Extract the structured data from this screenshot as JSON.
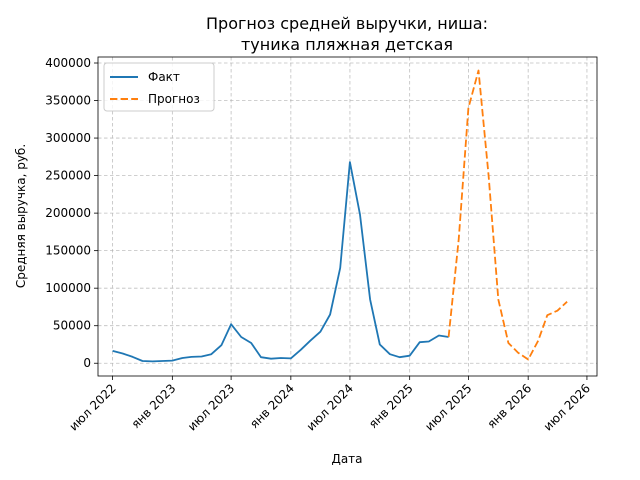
{
  "chart_data": {
    "type": "line",
    "title_line1": "Прогноз средней выручки, ниша:",
    "title_line2": "туника пляжная детская",
    "xlabel": "Дата",
    "ylabel": "Средняя выручка, руб.",
    "xlim": [
      "2022-05-17",
      "2026-08-01"
    ],
    "ylim": [
      -17000,
      408000
    ],
    "x_ticks": [
      {
        "date": "2022-07-01",
        "label": "июл 2022"
      },
      {
        "date": "2023-01-01",
        "label": "янв 2023"
      },
      {
        "date": "2023-07-01",
        "label": "июл 2023"
      },
      {
        "date": "2024-01-01",
        "label": "янв 2024"
      },
      {
        "date": "2024-07-01",
        "label": "июл 2024"
      },
      {
        "date": "2025-01-01",
        "label": "янв 2025"
      },
      {
        "date": "2025-07-01",
        "label": "июл 2025"
      },
      {
        "date": "2026-01-01",
        "label": "янв 2026"
      },
      {
        "date": "2026-07-01",
        "label": "июл 2026"
      }
    ],
    "y_ticks": [
      {
        "value": 0,
        "label": "0"
      },
      {
        "value": 50000,
        "label": "50000"
      },
      {
        "value": 100000,
        "label": "100000"
      },
      {
        "value": 150000,
        "label": "150000"
      },
      {
        "value": 200000,
        "label": "200000"
      },
      {
        "value": 250000,
        "label": "250000"
      },
      {
        "value": 300000,
        "label": "300000"
      },
      {
        "value": 350000,
        "label": "350000"
      },
      {
        "value": 400000,
        "label": "400000"
      }
    ],
    "grid": true,
    "legend_position": "top-left",
    "series": [
      {
        "name": "Факт",
        "color": "#1f77b4",
        "style": "solid",
        "points": [
          {
            "x": "2022-07-01",
            "y": 16500
          },
          {
            "x": "2022-08-01",
            "y": 13000
          },
          {
            "x": "2022-09-01",
            "y": 8500
          },
          {
            "x": "2022-10-01",
            "y": 3000
          },
          {
            "x": "2022-11-01",
            "y": 2500
          },
          {
            "x": "2022-12-01",
            "y": 3000
          },
          {
            "x": "2023-01-01",
            "y": 3500
          },
          {
            "x": "2023-02-01",
            "y": 7000
          },
          {
            "x": "2023-03-01",
            "y": 8500
          },
          {
            "x": "2023-04-01",
            "y": 9000
          },
          {
            "x": "2023-05-01",
            "y": 12000
          },
          {
            "x": "2023-06-01",
            "y": 24000
          },
          {
            "x": "2023-07-01",
            "y": 52000
          },
          {
            "x": "2023-08-01",
            "y": 35000
          },
          {
            "x": "2023-09-01",
            "y": 27000
          },
          {
            "x": "2023-10-01",
            "y": 8000
          },
          {
            "x": "2023-11-01",
            "y": 6000
          },
          {
            "x": "2023-12-01",
            "y": 7000
          },
          {
            "x": "2024-01-01",
            "y": 6500
          },
          {
            "x": "2024-02-01",
            "y": 18000
          },
          {
            "x": "2024-03-01",
            "y": 30000
          },
          {
            "x": "2024-04-01",
            "y": 42000
          },
          {
            "x": "2024-05-01",
            "y": 65000
          },
          {
            "x": "2024-06-01",
            "y": 127000
          },
          {
            "x": "2024-07-01",
            "y": 268000
          },
          {
            "x": "2024-08-01",
            "y": 198000
          },
          {
            "x": "2024-09-01",
            "y": 85000
          },
          {
            "x": "2024-10-01",
            "y": 25000
          },
          {
            "x": "2024-11-01",
            "y": 12000
          },
          {
            "x": "2024-12-01",
            "y": 8000
          },
          {
            "x": "2025-01-01",
            "y": 10000
          },
          {
            "x": "2025-02-01",
            "y": 28000
          },
          {
            "x": "2025-03-01",
            "y": 29000
          },
          {
            "x": "2025-04-01",
            "y": 37000
          },
          {
            "x": "2025-05-01",
            "y": 35000
          }
        ]
      },
      {
        "name": "Прогноз",
        "color": "#ff7f0e",
        "style": "dashed",
        "points": [
          {
            "x": "2025-05-01",
            "y": 35000
          },
          {
            "x": "2025-06-01",
            "y": 165000
          },
          {
            "x": "2025-07-01",
            "y": 340000
          },
          {
            "x": "2025-08-01",
            "y": 390000
          },
          {
            "x": "2025-09-01",
            "y": 250000
          },
          {
            "x": "2025-10-01",
            "y": 85000
          },
          {
            "x": "2025-11-01",
            "y": 27000
          },
          {
            "x": "2025-12-01",
            "y": 14000
          },
          {
            "x": "2026-01-01",
            "y": 5000
          },
          {
            "x": "2026-02-01",
            "y": 30000
          },
          {
            "x": "2026-03-01",
            "y": 64000
          },
          {
            "x": "2026-04-01",
            "y": 70000
          },
          {
            "x": "2026-05-01",
            "y": 82000
          }
        ]
      }
    ]
  }
}
